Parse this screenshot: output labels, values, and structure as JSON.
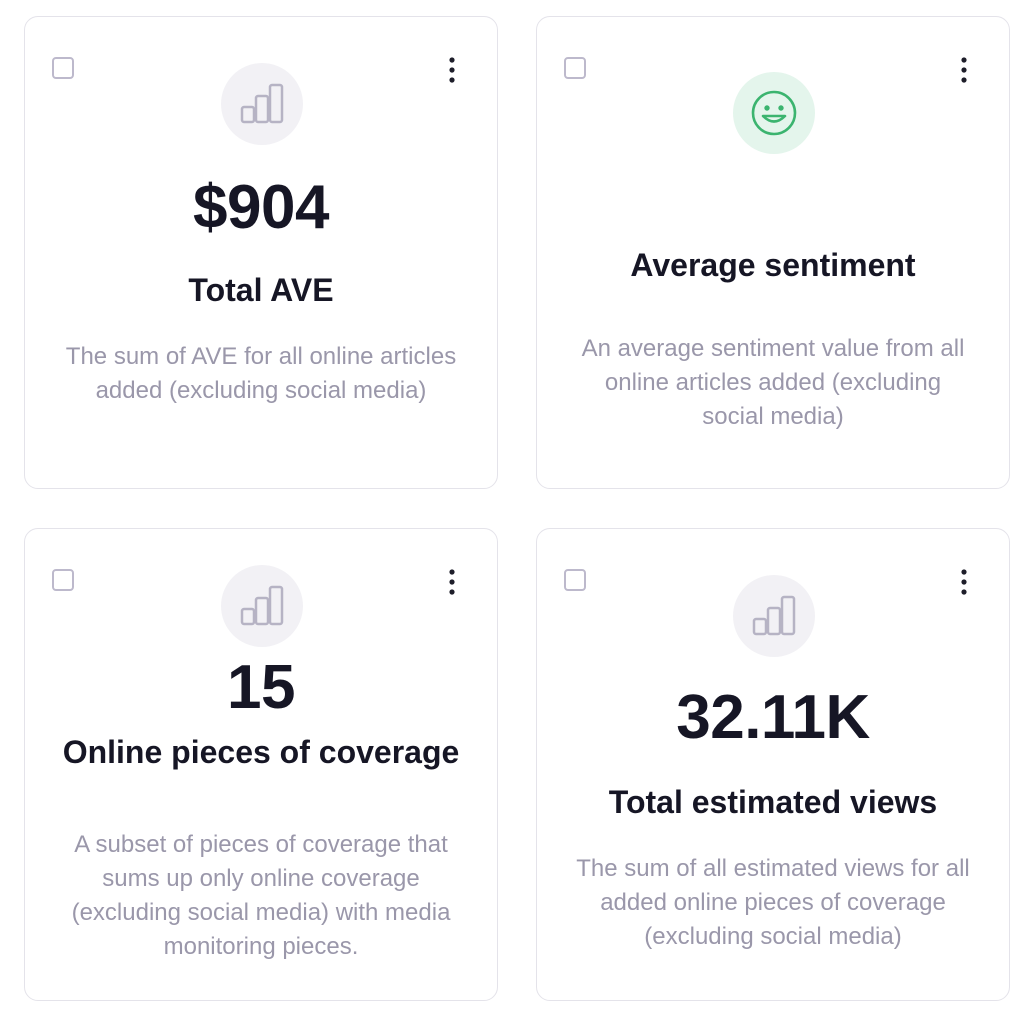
{
  "cards": [
    {
      "value": "$904",
      "title": "Total AVE",
      "description": "The sum of AVE for all online articles added (excluding social media)",
      "icon": "bar-chart-icon"
    },
    {
      "value": "",
      "title": "Average sentiment",
      "description": "An average sentiment value from all online articles added (excluding social media)",
      "icon": "smiley-icon"
    },
    {
      "value": "15",
      "title": "Online pieces of coverage",
      "description": "A subset of pieces of coverage that sums up only online coverage (excluding social media) with media monitoring pieces.",
      "icon": "bar-chart-icon"
    },
    {
      "value": "32.11K",
      "title": "Total estimated views",
      "description": "The sum of all estimated views for all added online pieces of coverage (excluding social media)",
      "icon": "bar-chart-icon"
    }
  ],
  "colors": {
    "value_text": "#161625",
    "description_text": "#9a97aa",
    "card_border": "#e4e3ea",
    "icon_bg": "#f2f1f5",
    "sentiment_icon_bg": "#e4f5ec",
    "sentiment_icon_stroke": "#3bb46f"
  }
}
